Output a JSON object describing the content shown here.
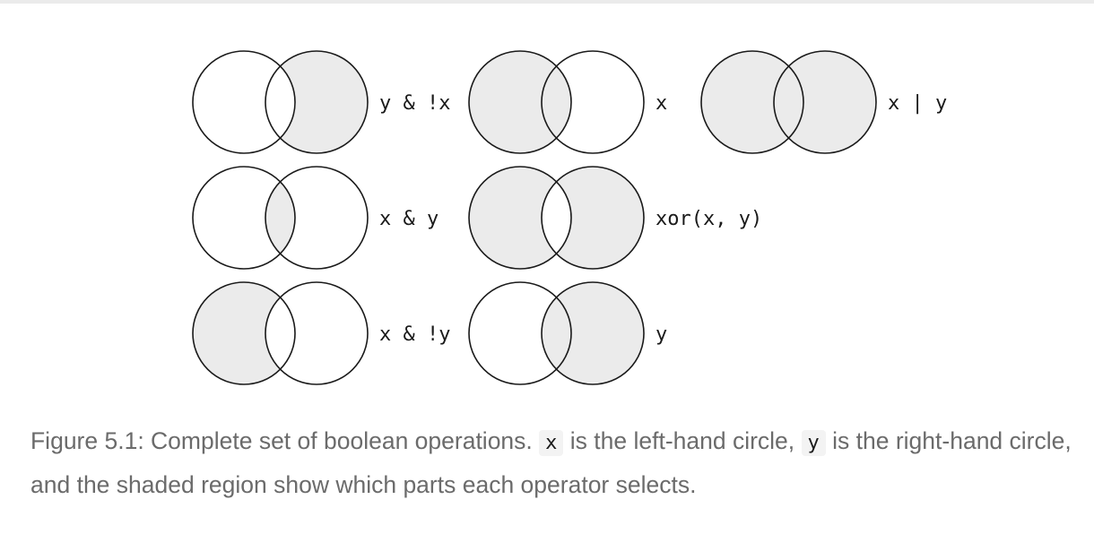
{
  "figure": {
    "panels": [
      {
        "label": "y & !x",
        "shade_left": false,
        "shade_intersection": false,
        "shade_right": true
      },
      {
        "label": "x",
        "shade_left": true,
        "shade_intersection": true,
        "shade_right": false
      },
      {
        "label": "x | y",
        "shade_left": true,
        "shade_intersection": true,
        "shade_right": true
      },
      {
        "label": "x & y",
        "shade_left": false,
        "shade_intersection": true,
        "shade_right": false
      },
      {
        "label": "xor(x, y)",
        "shade_left": true,
        "shade_intersection": false,
        "shade_right": true
      },
      {
        "label": "x & !y",
        "shade_left": true,
        "shade_intersection": false,
        "shade_right": false
      },
      {
        "label": "y",
        "shade_left": false,
        "shade_intersection": true,
        "shade_right": true
      }
    ],
    "colors": {
      "shade": "#ebebeb",
      "stroke": "#1a1a1a"
    }
  },
  "caption": {
    "prefix": "Figure 5.1: Complete set of boolean operations. ",
    "code_x": "x",
    "mid": " is the left-hand circle, ",
    "code_y": "y",
    "suffix": " is the right-hand circle, and the shaded region show which parts each operator selects."
  }
}
